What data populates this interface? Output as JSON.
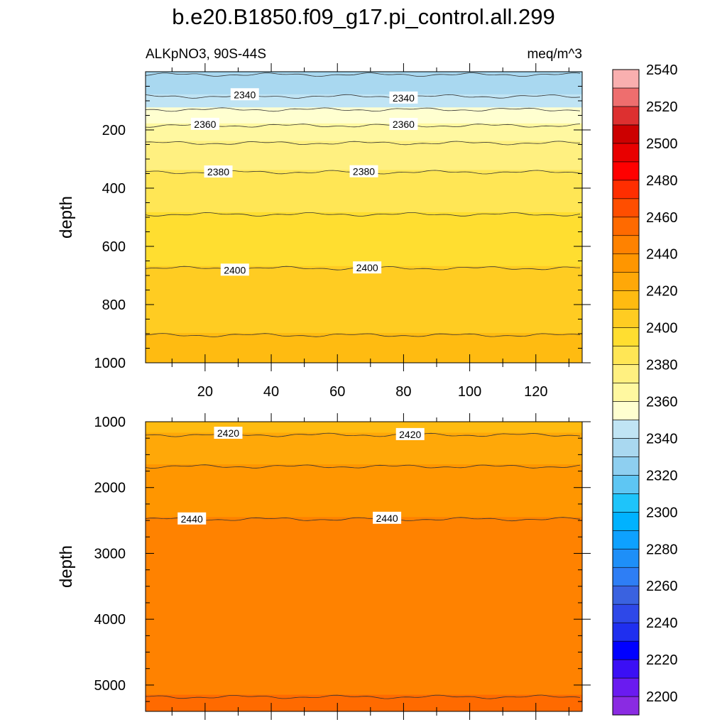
{
  "figure": {
    "title": "b.e20.B1850.f09_g17.pi_control.all.299",
    "left_string": "ALKpNO3, 90S-44S",
    "right_string": "meq/m^3"
  },
  "chart_data": [
    {
      "type": "heatmap",
      "panel": "upper",
      "xlabel": "",
      "ylabel": "depth",
      "xlim": [
        2,
        134
      ],
      "ylim": [
        1000,
        0
      ],
      "xticks": [
        20,
        40,
        60,
        80,
        100,
        120
      ],
      "xtick_labels": [
        "20",
        "40",
        "60",
        "80",
        "100",
        "120"
      ],
      "yticks": [
        200,
        400,
        600,
        800,
        1000
      ],
      "ytick_labels": [
        "200",
        "400",
        "600",
        "800",
        "1000"
      ],
      "bands": [
        {
          "value_range": [
            2320,
            2330
          ],
          "depth_top": 0,
          "depth_bottom": 10
        },
        {
          "value_range": [
            2330,
            2340
          ],
          "depth_top": 10,
          "depth_bottom": 85
        },
        {
          "value_range": [
            2340,
            2350
          ],
          "depth_top": 85,
          "depth_bottom": 130
        },
        {
          "value_range": [
            2350,
            2360
          ],
          "depth_top": 130,
          "depth_bottom": 185
        },
        {
          "value_range": [
            2360,
            2370
          ],
          "depth_top": 185,
          "depth_bottom": 245
        },
        {
          "value_range": [
            2370,
            2380
          ],
          "depth_top": 245,
          "depth_bottom": 345
        },
        {
          "value_range": [
            2380,
            2390
          ],
          "depth_top": 345,
          "depth_bottom": 490
        },
        {
          "value_range": [
            2390,
            2400
          ],
          "depth_top": 490,
          "depth_bottom": 675
        },
        {
          "value_range": [
            2400,
            2410
          ],
          "depth_top": 675,
          "depth_bottom": 905
        },
        {
          "value_range": [
            2410,
            2420
          ],
          "depth_top": 905,
          "depth_bottom": 1000
        }
      ],
      "contours": [
        {
          "level": 2330,
          "depth": 10,
          "label": ""
        },
        {
          "level": 2340,
          "depth": 85,
          "label": "2340",
          "label_x": [
            32,
            80
          ]
        },
        {
          "level": 2350,
          "depth": 130,
          "label": ""
        },
        {
          "level": 2360,
          "depth": 185,
          "label": "2360",
          "label_x": [
            20,
            80
          ]
        },
        {
          "level": 2370,
          "depth": 245,
          "label": ""
        },
        {
          "level": 2380,
          "depth": 345,
          "label": "2380",
          "label_x": [
            24,
            68
          ]
        },
        {
          "level": 2390,
          "depth": 490,
          "label": ""
        },
        {
          "level": 2400,
          "depth": 675,
          "label": "2400",
          "label_x": [
            29,
            69
          ]
        },
        {
          "level": 2410,
          "depth": 905,
          "label": ""
        }
      ]
    },
    {
      "type": "heatmap",
      "panel": "lower",
      "xlabel": "",
      "ylabel": "depth",
      "xlim": [
        2,
        134
      ],
      "ylim": [
        5400,
        1000
      ],
      "yticks": [
        1000,
        2000,
        3000,
        4000,
        5000
      ],
      "ytick_labels": [
        "1000",
        "2000",
        "3000",
        "4000",
        "5000"
      ],
      "bands": [
        {
          "value_range": [
            2410,
            2420
          ],
          "depth_top": 1000,
          "depth_bottom": 1200
        },
        {
          "value_range": [
            2420,
            2430
          ],
          "depth_top": 1200,
          "depth_bottom": 1680
        },
        {
          "value_range": [
            2430,
            2440
          ],
          "depth_top": 1680,
          "depth_bottom": 2480
        },
        {
          "value_range": [
            2440,
            2450
          ],
          "depth_top": 2480,
          "depth_bottom": 5180
        },
        {
          "value_range": [
            2450,
            2460
          ],
          "depth_top": 5180,
          "depth_bottom": 5400
        }
      ],
      "contours": [
        {
          "level": 2420,
          "depth": 1200,
          "label": "2420",
          "label_x": [
            27,
            82
          ]
        },
        {
          "level": 2430,
          "depth": 1680,
          "label": ""
        },
        {
          "level": 2440,
          "depth": 2480,
          "label": "2440",
          "label_x": [
            16,
            75
          ]
        },
        {
          "level": 2450,
          "depth": 5180,
          "label": ""
        }
      ]
    }
  ],
  "colorbar": {
    "min": 2190,
    "step": 10,
    "label_values": [
      "2200",
      "2220",
      "2240",
      "2260",
      "2280",
      "2300",
      "2320",
      "2340",
      "2360",
      "2380",
      "2400",
      "2420",
      "2440",
      "2460",
      "2480",
      "2500",
      "2520",
      "2540"
    ],
    "colors": [
      "#8a2be2",
      "#6a1bf0",
      "#3b0ff5",
      "#0000ff",
      "#1f2fef",
      "#2e48e8",
      "#3a62e0",
      "#2e7ef5",
      "#1e8ff8",
      "#0ea1ff",
      "#00b2ff",
      "#1ec4fa",
      "#5ec6f3",
      "#8ecff0",
      "#a9d8f0",
      "#c0e4f4",
      "#ffffd0",
      "#fff8a0",
      "#fff080",
      "#ffe655",
      "#ffde30",
      "#ffcc22",
      "#ffbb11",
      "#ffa808",
      "#ff9600",
      "#ff8200",
      "#ff6a00",
      "#ff4e00",
      "#ff2e00",
      "#ff0000",
      "#e80000",
      "#cc0000",
      "#dd3030",
      "#ee6e6e",
      "#f9afaf"
    ]
  }
}
